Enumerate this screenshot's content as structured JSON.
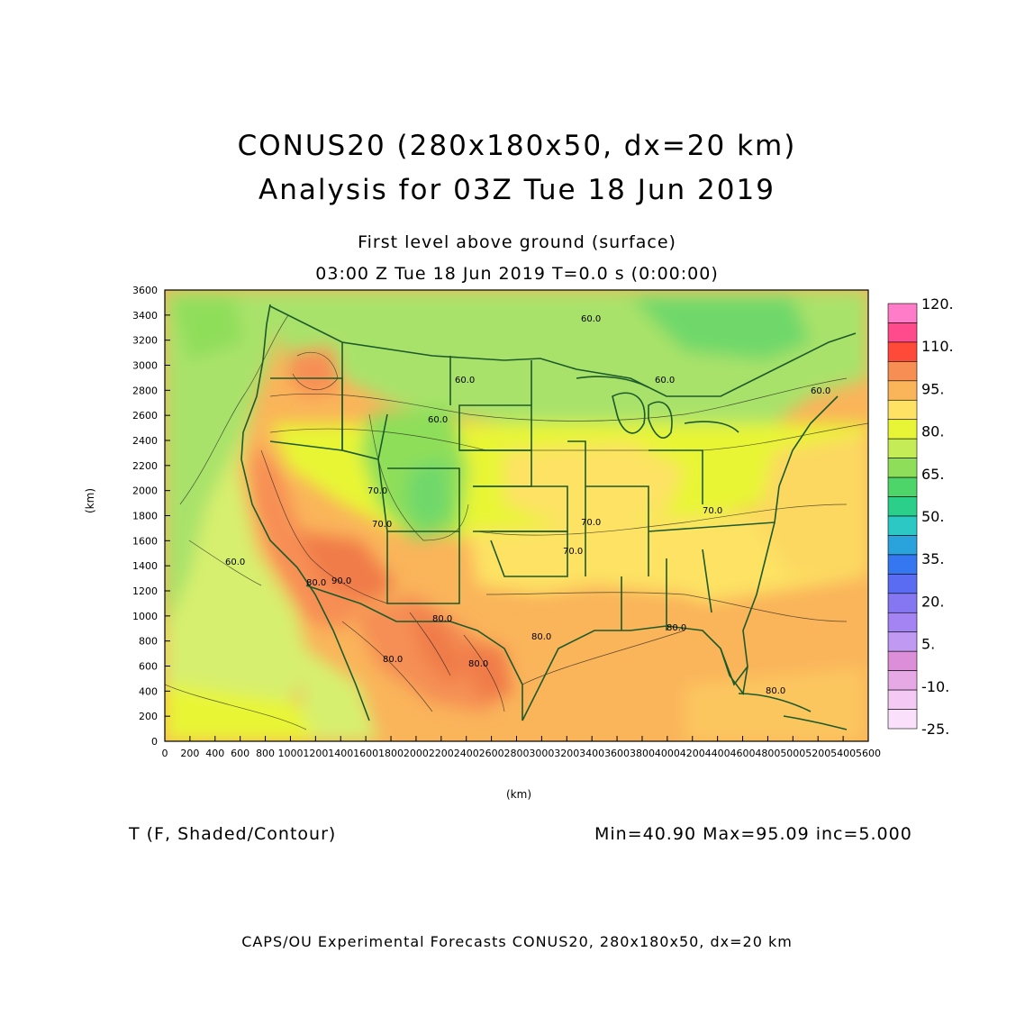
{
  "header": {
    "title_line1": "CONUS20 (280x180x50, dx=20 km)",
    "title_line2": "Analysis for 03Z Tue 18 Jun 2019",
    "subtitle_line1": "First level above ground (surface)",
    "subtitle_line2": "03:00 Z Tue 18 Jun 2019    T=0.0 s (0:00:00)"
  },
  "axes": {
    "x_label": "(km)",
    "y_label": "(km)",
    "x_ticks": [
      "0",
      "200",
      "400",
      "600",
      "800",
      "1000",
      "1200",
      "1400",
      "1600",
      "1800",
      "2000",
      "2200",
      "2400",
      "2600",
      "2800",
      "3000",
      "3200",
      "3400",
      "3600",
      "3800",
      "4000",
      "4200",
      "4400",
      "4600",
      "4800",
      "5000",
      "5200",
      "5400",
      "5600"
    ],
    "y_ticks": [
      "0",
      "200",
      "400",
      "600",
      "800",
      "1000",
      "1200",
      "1400",
      "1600",
      "1800",
      "2000",
      "2200",
      "2400",
      "2600",
      "2800",
      "3000",
      "3200",
      "3400",
      "3600"
    ],
    "x_range": [
      0,
      5600
    ],
    "y_range": [
      0,
      3600
    ]
  },
  "map": {
    "contour_labels": [
      "60.0",
      "60.0",
      "60.0",
      "60.0",
      "60.0",
      "60.0",
      "70.0",
      "70.0",
      "70.0",
      "70.0",
      "70.0",
      "80.0",
      "80.0",
      "80.0",
      "80.0",
      "80.0",
      "80.0",
      "80.0",
      "90.0"
    ]
  },
  "legend": {
    "labels": [
      "120.",
      "110.",
      "95.",
      "80.",
      "65.",
      "50.",
      "35.",
      "20.",
      "5.",
      "-10.",
      "-25."
    ],
    "colors": [
      "#ff7dc8",
      "#ff4b8c",
      "#ff4a3a",
      "#f78f55",
      "#fab45a",
      "#fde264",
      "#e8f536",
      "#c4ec56",
      "#8fde5a",
      "#4ed56a",
      "#2ccf8a",
      "#2cc9c4",
      "#2aa3dc",
      "#3477f0",
      "#5a6cf2",
      "#8577f2",
      "#a384f2",
      "#bf99f2",
      "#dc8fd8",
      "#e6a9e6",
      "#f4c9f4",
      "#fbe0fb"
    ]
  },
  "footer": {
    "var_label": "T (F, Shaded/Contour)",
    "stats": "Min=40.90  Max=95.09  inc=5.000",
    "credit": "CAPS/OU Experimental Forecasts   CONUS20, 280x180x50, dx=20 km"
  }
}
